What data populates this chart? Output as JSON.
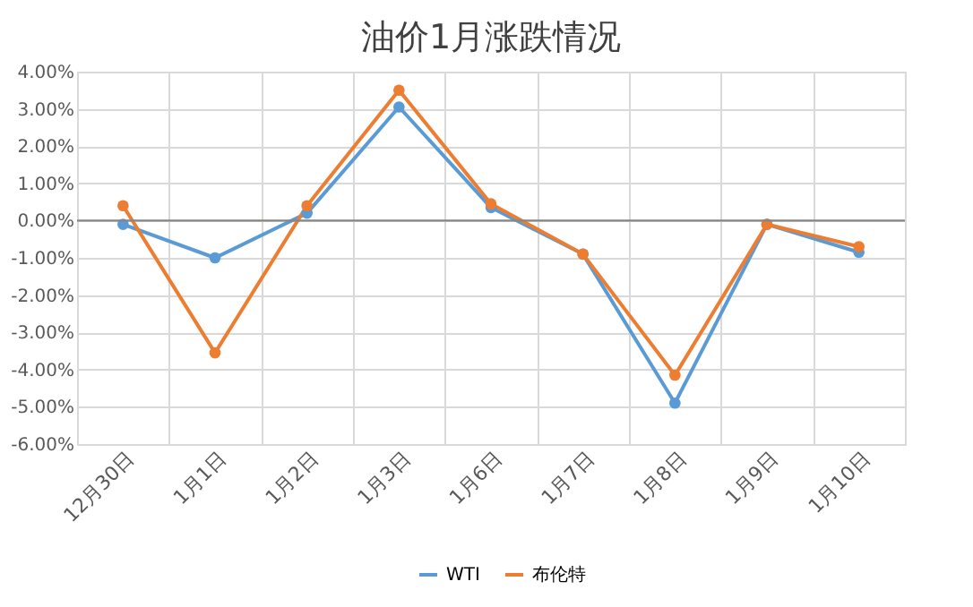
{
  "chart_data": {
    "type": "line",
    "title": "油价1月涨跌情况",
    "categories": [
      "12月30日",
      "1月1日",
      "1月2日",
      "1月3日",
      "1月6日",
      "1月7日",
      "1月8日",
      "1月9日",
      "1月10日"
    ],
    "series": [
      {
        "name": "WTI",
        "color": "#5b9bd5",
        "values": [
          -0.1,
          -1.0,
          0.2,
          3.05,
          0.35,
          -0.9,
          -4.9,
          -0.1,
          -0.85
        ]
      },
      {
        "name": "布伦特",
        "color": "#ed7d31",
        "values": [
          0.4,
          -3.55,
          0.4,
          3.5,
          0.45,
          -0.9,
          -4.15,
          -0.1,
          -0.7
        ]
      }
    ],
    "ylim": [
      -6,
      4
    ],
    "yticks": [
      {
        "value": -6,
        "label": "-6.00%"
      },
      {
        "value": -5,
        "label": "-5.00%"
      },
      {
        "value": -4,
        "label": "-4.00%"
      },
      {
        "value": -3,
        "label": "-3.00%"
      },
      {
        "value": -2,
        "label": "-2.00%"
      },
      {
        "value": -1,
        "label": "-1.00%"
      },
      {
        "value": 0,
        "label": "0.00%"
      },
      {
        "value": 1,
        "label": "1.00%"
      },
      {
        "value": 2,
        "label": "2.00%"
      },
      {
        "value": 3,
        "label": "3.00%"
      },
      {
        "value": 4,
        "label": "4.00%"
      }
    ],
    "ref_lines": [
      {
        "axis": "y",
        "value": 0,
        "color": "#868686"
      }
    ],
    "grid": true,
    "legend": "bottom",
    "marker": "circle",
    "line_style": "solid"
  }
}
